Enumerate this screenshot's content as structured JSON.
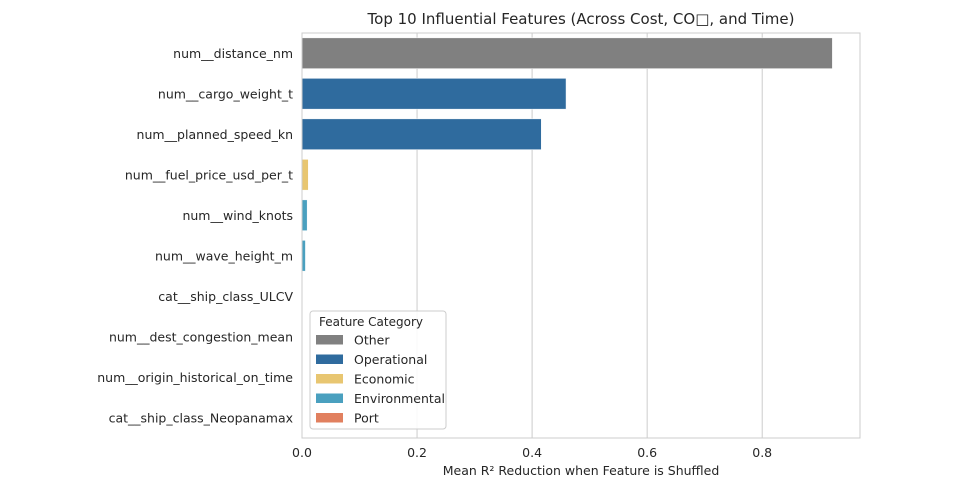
{
  "chart_data": {
    "type": "bar",
    "orientation": "horizontal",
    "title": "Top 10 Influential Features (Across Cost, CO□, and Time)",
    "xlabel": "Mean R² Reduction when Feature is Shuffled",
    "ylabel": "",
    "xlim": [
      0,
      0.97
    ],
    "xticks": [
      0.0,
      0.2,
      0.4,
      0.6,
      0.8
    ],
    "xtick_labels": [
      "0.0",
      "0.2",
      "0.4",
      "0.6",
      "0.8"
    ],
    "grid": "vertical",
    "categories": [
      "num__distance_nm",
      "num__cargo_weight_t",
      "num__planned_speed_kn",
      "num__fuel_price_usd_per_t",
      "num__wind_knots",
      "num__wave_height_m",
      "cat__ship_class_ULCV",
      "num__dest_congestion_mean",
      "num__origin_historical_on_time",
      "cat__ship_class_Neopanamax"
    ],
    "values": [
      0.922,
      0.459,
      0.416,
      0.011,
      0.009,
      0.006,
      0.0,
      0.0,
      0.0,
      0.0
    ],
    "bar_categories": [
      "Other",
      "Operational",
      "Operational",
      "Economic",
      "Environmental",
      "Environmental",
      "Operational",
      "Port",
      "Port",
      "Operational"
    ],
    "legend": {
      "title": "Feature Category",
      "placement": "lower-left",
      "entries": [
        {
          "name": "Other",
          "color": "#808080"
        },
        {
          "name": "Operational",
          "color": "#2f6b9e"
        },
        {
          "name": "Economic",
          "color": "#e8c671"
        },
        {
          "name": "Environmental",
          "color": "#4aa0bf"
        },
        {
          "name": "Port",
          "color": "#e1805f"
        }
      ]
    }
  }
}
